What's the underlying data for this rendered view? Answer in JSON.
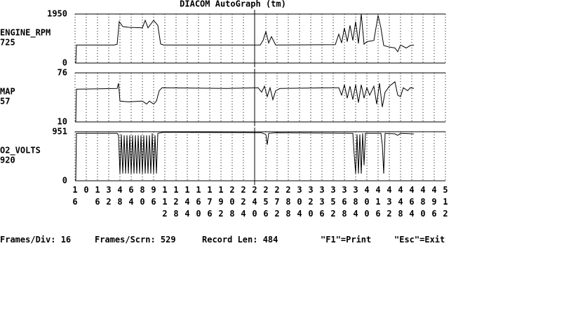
{
  "header": {
    "title": "DIACOM AutoGraph (tm)"
  },
  "chart_data": [
    {
      "type": "line",
      "name": "ENGINE_RPM",
      "current": 725,
      "color": "#000000",
      "xlim": [
        -16,
        512
      ],
      "ylim": [
        0,
        1950
      ],
      "yticks": [
        0,
        1950
      ],
      "cursor": 240,
      "x": [
        -15,
        -14,
        40,
        44,
        47,
        52,
        60,
        80,
        84,
        88,
        96,
        102,
        106,
        110,
        248,
        252,
        256,
        260,
        264,
        270,
        355,
        360,
        364,
        368,
        372,
        376,
        380,
        384,
        388,
        392,
        396,
        400,
        410,
        416,
        420,
        424,
        430,
        440,
        444,
        448,
        456,
        462,
        467
      ],
      "values": [
        0,
        720,
        720,
        750,
        1650,
        1450,
        1420,
        1400,
        1700,
        1400,
        1700,
        1500,
        760,
        720,
        720,
        900,
        1250,
        800,
        1050,
        720,
        730,
        1150,
        800,
        1400,
        850,
        1500,
        900,
        1650,
        780,
        1950,
        750,
        850,
        900,
        1900,
        1400,
        700,
        650,
        600,
        450,
        720,
        600,
        700,
        720
      ]
    },
    {
      "type": "line",
      "name": "MAP",
      "current": 57,
      "color": "#000000",
      "xlim": [
        -16,
        512
      ],
      "ylim": [
        10,
        76
      ],
      "yticks": [
        10,
        76
      ],
      "cursor": 240,
      "x": [
        -15,
        -14,
        44,
        46,
        48,
        60,
        80,
        86,
        90,
        96,
        100,
        104,
        108,
        200,
        245,
        250,
        254,
        258,
        262,
        266,
        270,
        276,
        350,
        360,
        364,
        368,
        372,
        376,
        380,
        384,
        388,
        392,
        396,
        400,
        404,
        410,
        414,
        418,
        422,
        426,
        432,
        440,
        444,
        448,
        452,
        458,
        462,
        467
      ],
      "values": [
        10,
        54,
        55,
        62,
        38,
        37,
        38,
        34,
        38,
        34,
        38,
        52,
        56,
        55,
        56,
        50,
        58,
        44,
        56,
        40,
        52,
        55,
        56,
        56,
        46,
        60,
        42,
        58,
        40,
        60,
        36,
        60,
        42,
        56,
        46,
        58,
        34,
        62,
        30,
        50,
        58,
        64,
        46,
        44,
        56,
        52,
        56,
        55
      ]
    },
    {
      "type": "line",
      "name": "O2_VOLTS",
      "current": 920,
      "color": "#000000",
      "xlim": [
        -16,
        512
      ],
      "ylim": [
        0,
        951
      ],
      "yticks": [
        0,
        951
      ],
      "cursor": 240,
      "x": [
        -15,
        -14,
        44,
        46,
        48,
        50,
        52,
        54,
        56,
        58,
        60,
        62,
        64,
        66,
        68,
        70,
        72,
        74,
        76,
        78,
        80,
        82,
        84,
        86,
        88,
        90,
        92,
        94,
        96,
        98,
        100,
        102,
        110,
        250,
        256,
        258,
        260,
        270,
        380,
        382,
        384,
        386,
        388,
        390,
        392,
        394,
        396,
        398,
        420,
        422,
        424,
        426,
        440,
        444,
        448,
        467
      ],
      "values": [
        0,
        920,
        920,
        880,
        140,
        900,
        140,
        880,
        140,
        880,
        140,
        880,
        140,
        880,
        140,
        880,
        140,
        880,
        140,
        880,
        140,
        880,
        140,
        880,
        140,
        880,
        140,
        920,
        140,
        880,
        140,
        920,
        940,
        930,
        900,
        700,
        920,
        930,
        920,
        500,
        140,
        900,
        140,
        900,
        140,
        920,
        300,
        920,
        920,
        700,
        140,
        920,
        910,
        880,
        920,
        910
      ],
      "xticks": [
        {
          "value": -16,
          "label": "16"
        },
        0,
        16,
        32,
        48,
        64,
        80,
        96,
        112,
        128,
        144,
        160,
        176,
        192,
        208,
        224,
        240,
        256,
        272,
        288,
        304,
        320,
        336,
        352,
        368,
        384,
        400,
        416,
        432,
        448,
        464,
        480,
        496,
        512
      ]
    }
  ],
  "status_bar": [
    "Frames/Div: 16",
    "Frames/Scrn: 529",
    "Record Len: 484",
    "\"F1\"=Print",
    "\"Esc\"=Exit"
  ]
}
